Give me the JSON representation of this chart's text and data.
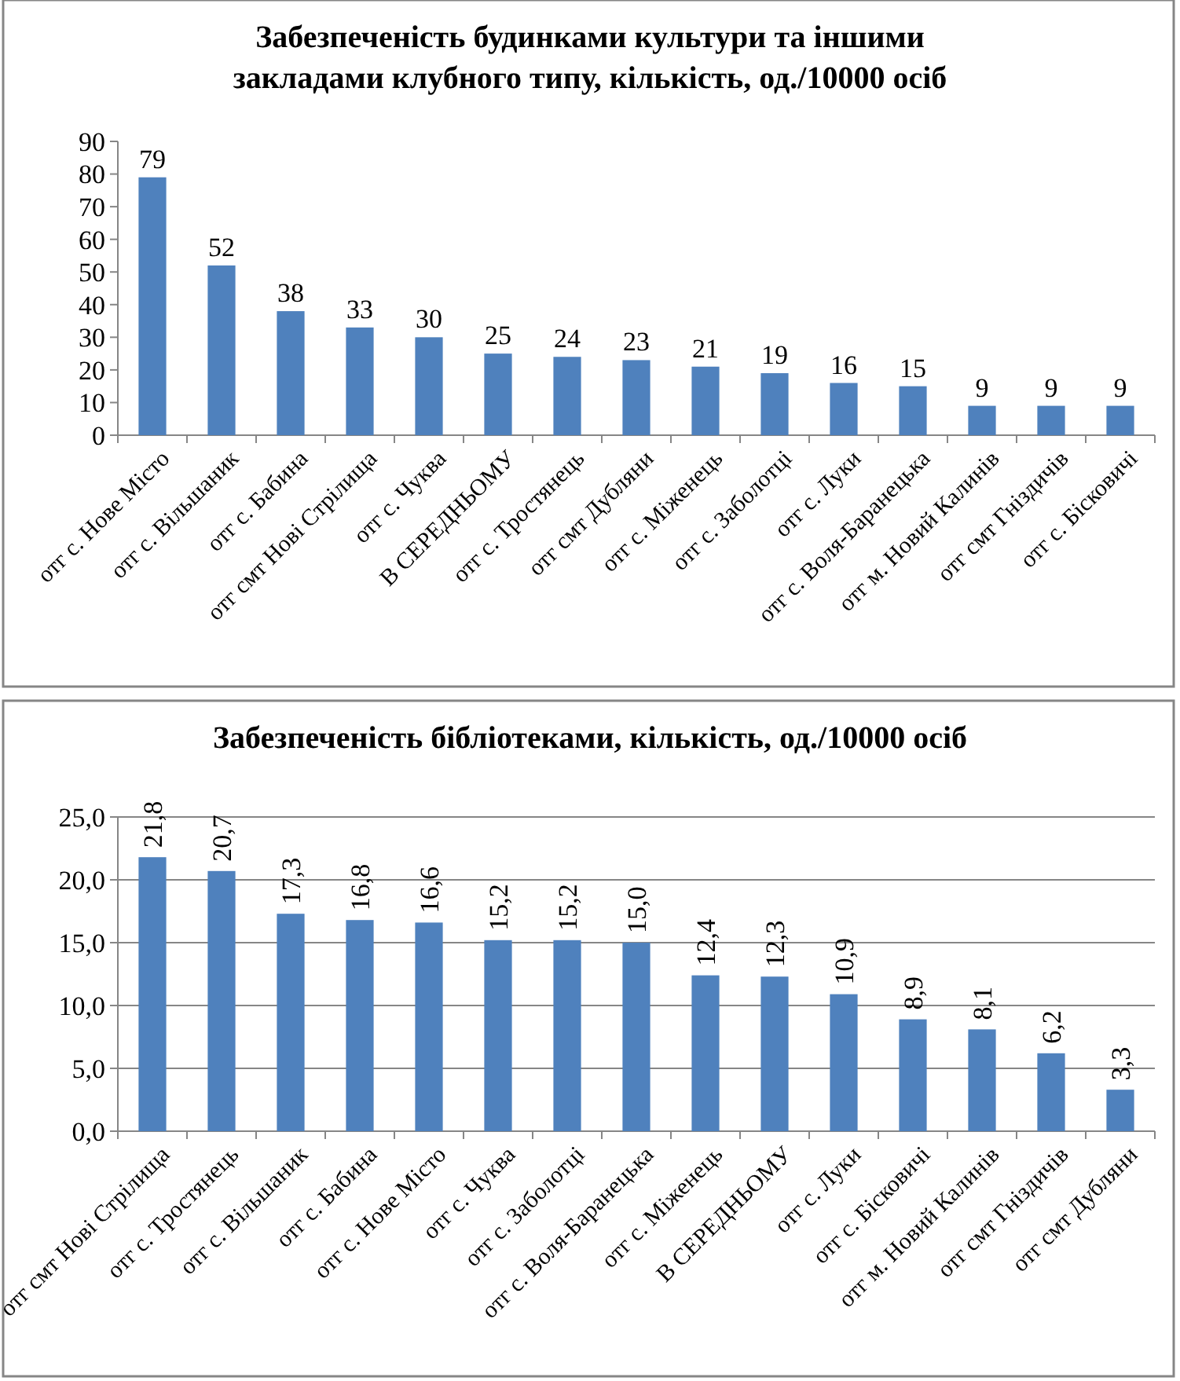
{
  "chart_data": [
    {
      "type": "bar",
      "title": "Забезпеченість будинками культури та іншими\nзакладами клубного типу, кількість, од./10000 осіб",
      "categories": [
        "отг с. Нове Місто",
        "отг с. Вільшаник",
        "отг с. Бабина",
        "отг смт Нові Стрілища",
        "отг с. Чуква",
        "В СЕРЕДНЬОМУ",
        "отг с. Тростянець",
        "отг смт Дубляни",
        "отг с. Міженець",
        "отг с. Заболотці",
        "отг с. Луки",
        "отг с. Воля-Баранецька",
        "отг м. Новий Калинів",
        "отг смт Гніздичів",
        "отг с. Бісковичі"
      ],
      "values": [
        79,
        52,
        38,
        33,
        30,
        25,
        24,
        23,
        21,
        19,
        16,
        15,
        9,
        9,
        9
      ],
      "color": "#4f81bd",
      "data_labels": true,
      "ylim": [
        0,
        90
      ],
      "yticks": [
        0,
        10,
        20,
        30,
        40,
        50,
        60,
        70,
        80,
        90
      ],
      "grid": false
    },
    {
      "type": "bar",
      "title": "Забезпеченість бібліотеками, кількість, од./10000 осіб",
      "categories": [
        "отг смт Нові Стрілища",
        "отг с. Тростянець",
        "отг с. Вільшаник",
        "отг с. Бабина",
        "отг с. Нове Місто",
        "отг с. Чуква",
        "отг с. Заболотці",
        "отг с. Воля-Баранецька",
        "отг с. Міженець",
        "В СЕРЕДНЬОМУ",
        "отг с. Луки",
        "отг с. Бісковичі",
        "отг м. Новий Калинів",
        "отг смт Гніздичів",
        "отг смт Дубляни"
      ],
      "values": [
        21.8,
        20.7,
        17.3,
        16.8,
        16.6,
        15.2,
        15.2,
        15.0,
        12.4,
        12.3,
        10.9,
        8.9,
        8.1,
        6.2,
        3.3
      ],
      "value_labels": [
        "21,8",
        "20,7",
        "17,3",
        "16,8",
        "16,6",
        "15,2",
        "15,2",
        "15,0",
        "12,4",
        "12,3",
        "10,9",
        "8,9",
        "8,1",
        "6,2",
        "3,3"
      ],
      "color": "#4f81bd",
      "ylim": [
        0,
        25
      ],
      "yticks": [
        {
          "value": 0,
          "label": "0,0"
        },
        {
          "value": 5,
          "label": "5,0"
        },
        {
          "value": 10,
          "label": "10,0"
        },
        {
          "value": 15,
          "label": "15,0"
        },
        {
          "value": 20,
          "label": "20,0"
        },
        {
          "value": 25,
          "label": "25,0"
        }
      ],
      "grid": "y"
    }
  ]
}
